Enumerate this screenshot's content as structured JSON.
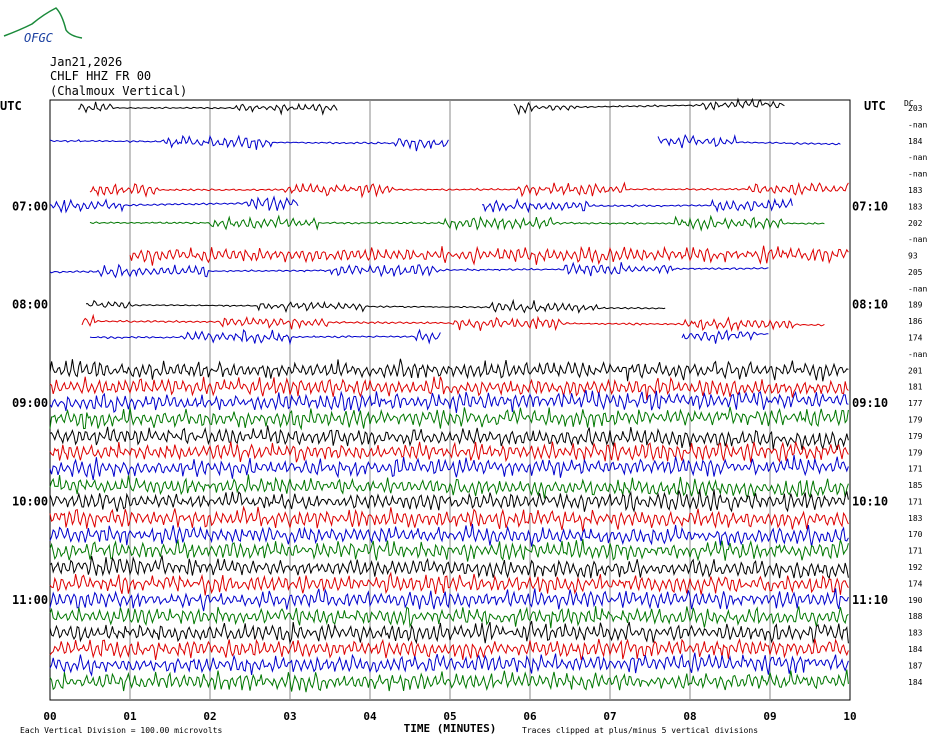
{
  "logo": {
    "text": "OFGC",
    "name": "ofgc-logo"
  },
  "header": {
    "date": "Jan21,2026",
    "station": "CHLF HHZ FR 00",
    "station_name": "(Chalmoux Vertical)"
  },
  "chart_data": {
    "type": "line",
    "subtype": "seismogram-helicorder",
    "left_axis_label": "UTC",
    "right_axis_label": "UTC",
    "dc_label": "DC",
    "left_hour_labels": [
      "07:00",
      "08:00",
      "09:00",
      "10:00",
      "11:00"
    ],
    "right_hour_labels": [
      "07:10",
      "08:10",
      "09:10",
      "10:10",
      "11:10"
    ],
    "x_ticks": [
      "00",
      "01",
      "02",
      "03",
      "04",
      "05",
      "06",
      "07",
      "08",
      "09",
      "10"
    ],
    "xlabel": "TIME (MINUTES)",
    "xlim": [
      0,
      10
    ],
    "footer_left": "Each Vertical Division =  100.00 microvolts",
    "footer_right": "Traces clipped at plus/minus 5 vertical divisions",
    "line_colors": [
      "#000000",
      "#dd0000",
      "#0000cc",
      "#007700"
    ],
    "grid": true,
    "traces": [
      {
        "dc": "203",
        "segments": [
          [
            0.35,
            3.6
          ],
          [
            5.8,
            9.2
          ]
        ],
        "amp": 4
      },
      {
        "dc": "-nan",
        "segments": [],
        "amp": 0
      },
      {
        "dc": "184",
        "segments": [
          [
            0.0,
            5.0
          ],
          [
            7.6,
            9.9
          ]
        ],
        "amp": 5
      },
      {
        "dc": "-nan",
        "segments": [],
        "amp": 0
      },
      {
        "dc": "-nan",
        "segments": [],
        "amp": 0
      },
      {
        "dc": "183",
        "segments": [
          [
            0.5,
            10.0
          ]
        ],
        "amp": 5
      },
      {
        "dc": "183",
        "segments": [
          [
            0.0,
            3.1
          ],
          [
            5.4,
            9.3
          ]
        ],
        "amp": 5
      },
      {
        "dc": "202",
        "segments": [
          [
            0.5,
            9.7
          ]
        ],
        "amp": 5
      },
      {
        "dc": "-nan",
        "segments": [],
        "amp": 0
      },
      {
        "dc": "93",
        "segments": [
          [
            1.0,
            10.0
          ]
        ],
        "amp": 6
      },
      {
        "dc": "205",
        "segments": [
          [
            0.0,
            9.0
          ]
        ],
        "amp": 5
      },
      {
        "dc": "-nan",
        "segments": [],
        "amp": 0
      },
      {
        "dc": "189",
        "segments": [
          [
            0.45,
            7.7
          ]
        ],
        "amp": 4
      },
      {
        "dc": "186",
        "segments": [
          [
            0.4,
            9.7
          ]
        ],
        "amp": 5
      },
      {
        "dc": "174",
        "segments": [
          [
            0.5,
            4.9
          ],
          [
            7.9,
            9.0
          ]
        ],
        "amp": 5
      },
      {
        "dc": "-nan",
        "segments": [],
        "amp": 0
      },
      {
        "dc": "201",
        "segments": [
          [
            0.0,
            10.0
          ]
        ],
        "amp": 7
      },
      {
        "dc": "181",
        "segments": [
          [
            0.0,
            10.0
          ]
        ],
        "amp": 7
      },
      {
        "dc": "177",
        "segments": [
          [
            0.0,
            10.0
          ]
        ],
        "amp": 7
      },
      {
        "dc": "179",
        "segments": [
          [
            0.0,
            10.0
          ]
        ],
        "amp": 7
      },
      {
        "dc": "179",
        "segments": [
          [
            0.0,
            10.0
          ]
        ],
        "amp": 7
      },
      {
        "dc": "179",
        "segments": [
          [
            0.0,
            10.0
          ]
        ],
        "amp": 7
      },
      {
        "dc": "171",
        "segments": [
          [
            0.0,
            10.0
          ]
        ],
        "amp": 7
      },
      {
        "dc": "185",
        "segments": [
          [
            0.0,
            10.0
          ]
        ],
        "amp": 7
      },
      {
        "dc": "171",
        "segments": [
          [
            0.0,
            10.0
          ]
        ],
        "amp": 7
      },
      {
        "dc": "183",
        "segments": [
          [
            0.0,
            10.0
          ]
        ],
        "amp": 7
      },
      {
        "dc": "170",
        "segments": [
          [
            0.0,
            10.0
          ]
        ],
        "amp": 7
      },
      {
        "dc": "171",
        "segments": [
          [
            0.0,
            10.0
          ]
        ],
        "amp": 7
      },
      {
        "dc": "192",
        "segments": [
          [
            0.0,
            10.0
          ]
        ],
        "amp": 7
      },
      {
        "dc": "174",
        "segments": [
          [
            0.0,
            10.0
          ]
        ],
        "amp": 7
      },
      {
        "dc": "190",
        "segments": [
          [
            0.0,
            10.0
          ]
        ],
        "amp": 7
      },
      {
        "dc": "188",
        "segments": [
          [
            0.0,
            10.0
          ]
        ],
        "amp": 7
      },
      {
        "dc": "183",
        "segments": [
          [
            0.0,
            10.0
          ]
        ],
        "amp": 7
      },
      {
        "dc": "184",
        "segments": [
          [
            0.0,
            10.0
          ]
        ],
        "amp": 7
      },
      {
        "dc": "187",
        "segments": [
          [
            0.0,
            10.0
          ]
        ],
        "amp": 7
      },
      {
        "dc": "184",
        "segments": [
          [
            0.0,
            10.0
          ]
        ],
        "amp": 7
      }
    ]
  }
}
